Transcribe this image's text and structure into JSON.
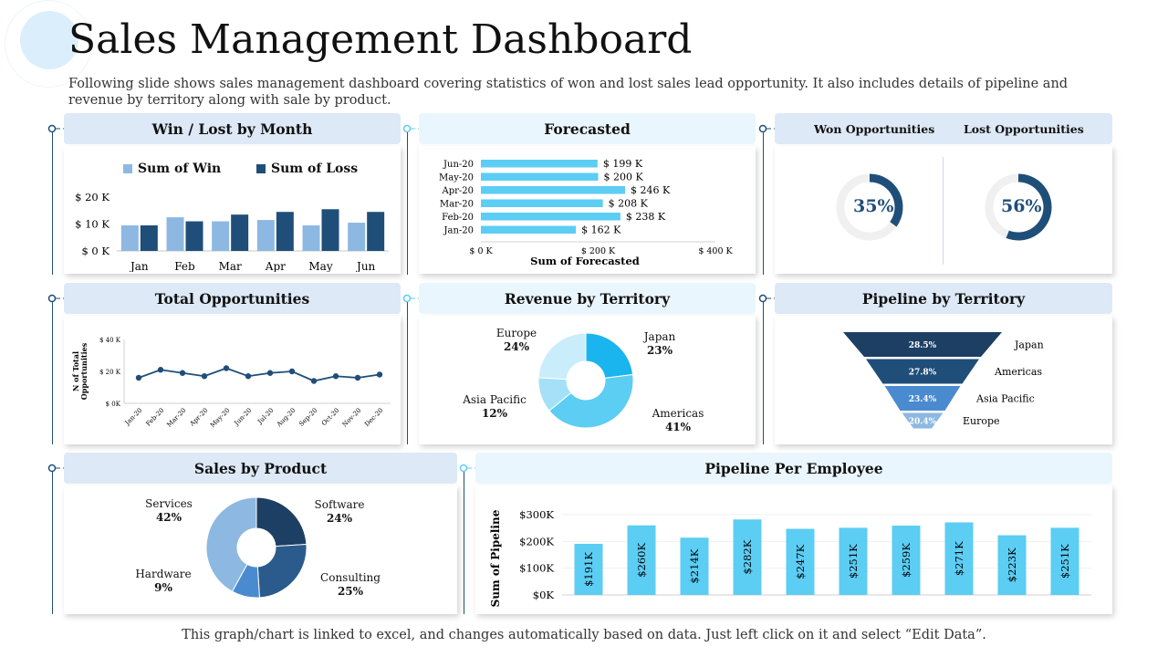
{
  "header": {
    "title": "Sales Management Dashboard",
    "subtitle": "Following slide shows sales management dashboard covering statistics of won and lost sales lead opportunity. It also includes details of pipeline and revenue by territory along with sale by product."
  },
  "footer": {
    "note": "This graph/chart is linked to excel, and changes automatically based on data. Just left click on it and select “Edit Data”."
  },
  "panels": {
    "win_lost": "Win / Lost by Month",
    "forecasted": "Forecasted",
    "won_opportunities": "Won Opportunities",
    "lost_opportunities": "Lost Opportunities",
    "total_opportunities": "Total Opportunities",
    "revenue_territory": "Revenue by Territory",
    "pipeline_territory": "Pipeline by Territory",
    "sales_product": "Sales by Product",
    "pipeline_employee": "Pipeline Per Employee"
  },
  "colors": {
    "light_blue": "#8db8e2",
    "dark_blue": "#1f4e79",
    "cyan": "#5ccdf3",
    "header_bg": "#dde9f6"
  },
  "chart_data": [
    {
      "id": "win_lost",
      "type": "bar",
      "title": "Win / Lost by Month",
      "categories": [
        "Jan",
        "Feb",
        "Mar",
        "Apr",
        "May",
        "Jun"
      ],
      "series": [
        {
          "name": "Sum of Win",
          "values": [
            9.5,
            12.5,
            11,
            11.5,
            9.5,
            10.5
          ]
        },
        {
          "name": "Sum of Loss",
          "values": [
            9.5,
            11,
            13.5,
            14.5,
            15.5,
            14.5
          ]
        }
      ],
      "yticks": [
        "$ 0 K",
        "$ 10 K",
        "$ 20 K"
      ],
      "ylim": [
        0,
        20
      ]
    },
    {
      "id": "forecasted",
      "type": "bar",
      "orientation": "horizontal",
      "title": "Forecasted",
      "xlabel": "Sum of Forecasted",
      "categories": [
        "Jun-20",
        "May-20",
        "Apr-20",
        "Mar-20",
        "Feb-20",
        "Jan-20"
      ],
      "values": [
        199,
        200,
        246,
        208,
        238,
        162
      ],
      "value_labels": [
        "$ 199 K",
        "$ 200 K",
        "$ 246 K",
        "$ 208 K",
        "$ 238 K",
        "$ 162 K"
      ],
      "xticks": [
        "$ 0 K",
        "$ 200 K",
        "$ 400 K"
      ],
      "xlim": [
        0,
        400
      ]
    },
    {
      "id": "won_lost_opps",
      "type": "pie",
      "series": [
        {
          "name": "Won Opportunities",
          "value": 35,
          "label": "35%"
        },
        {
          "name": "Lost Opportunities",
          "value": 56,
          "label": "56%"
        }
      ]
    },
    {
      "id": "total_opportunities",
      "type": "line",
      "title": "Total Opportunities",
      "ylabel": "N of Total Opportunities",
      "categories": [
        "Jan-20",
        "Feb-20",
        "Mar-20",
        "Apr-20",
        "May-20",
        "Jun-20",
        "Jul-20",
        "Aug-20",
        "Sep-20",
        "Oct-20",
        "Nov-20",
        "Dec-20"
      ],
      "values": [
        16,
        21,
        19,
        17,
        22,
        17,
        19,
        20,
        14,
        17,
        16,
        18
      ],
      "yticks": [
        "$ 0K",
        "$ 20 K",
        "$ 40 K"
      ],
      "ylim": [
        0,
        40
      ]
    },
    {
      "id": "revenue_territory",
      "type": "pie",
      "title": "Revenue by Territory",
      "slices": [
        {
          "name": "Japan",
          "value": 23,
          "label": "23%"
        },
        {
          "name": "Americas",
          "value": 41,
          "label": "41%"
        },
        {
          "name": "Asia Pacific",
          "value": 12,
          "label": "12%"
        },
        {
          "name": "Europe",
          "value": 24,
          "label": "24%"
        }
      ]
    },
    {
      "id": "pipeline_territory",
      "type": "bar",
      "shape": "funnel",
      "title": "Pipeline by Territory",
      "categories": [
        "Japan",
        "Americas",
        "Asia Pacific",
        "Europe"
      ],
      "values": [
        28.5,
        27.8,
        23.4,
        20.4
      ],
      "value_labels": [
        "28.5%",
        "27.8%",
        "23.4%",
        "20.4%"
      ]
    },
    {
      "id": "sales_product",
      "type": "pie",
      "title": "Sales by Product",
      "slices": [
        {
          "name": "Software",
          "value": 24,
          "label": "24%"
        },
        {
          "name": "Consulting",
          "value": 25,
          "label": "25%"
        },
        {
          "name": "Hardware",
          "value": 9,
          "label": "9%"
        },
        {
          "name": "Services",
          "value": 42,
          "label": "42%"
        }
      ]
    },
    {
      "id": "pipeline_employee",
      "type": "bar",
      "title": "Pipeline Per Employee",
      "ylabel": "Sum of Pipeline",
      "values": [
        191,
        260,
        214,
        282,
        247,
        251,
        259,
        271,
        223,
        251
      ],
      "value_labels": [
        "$191K",
        "$260K",
        "$214K",
        "$282K",
        "$247K",
        "$251K",
        "$259K",
        "$271K",
        "$223K",
        "$251K"
      ],
      "yticks": [
        "$0K",
        "$100K",
        "$200K",
        "$300K"
      ],
      "ylim": [
        0,
        300
      ]
    }
  ]
}
